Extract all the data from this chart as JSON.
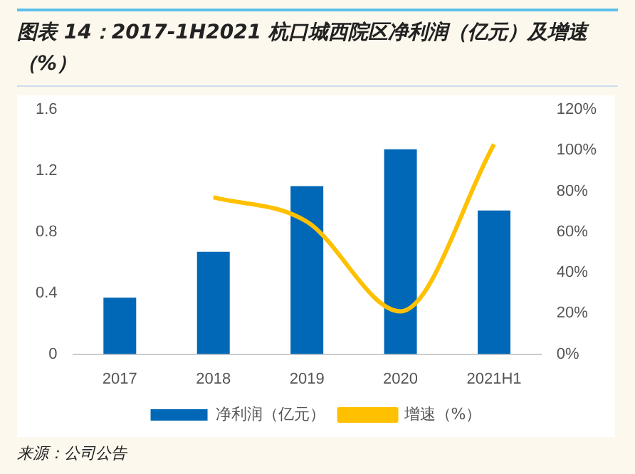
{
  "chart_data": {
    "type": "bar",
    "title": "图表 14：2017-1H2021 杭口城西院区净利润（亿元）及增速（%）",
    "categories": [
      "2017",
      "2018",
      "2019",
      "2020",
      "2021H1"
    ],
    "series": [
      {
        "name": "净利润（亿元）",
        "color": "#0068b7",
        "values": [
          0.37,
          0.67,
          1.1,
          1.34,
          0.94
        ]
      },
      {
        "name": "增速（%）",
        "type": "line",
        "axis": "y2",
        "color": "#ffc000",
        "values": [
          null,
          77,
          65,
          21,
          103
        ]
      }
    ],
    "ylim": [
      0,
      1.6
    ],
    "yticks": [
      0,
      0.4,
      0.8,
      1.2,
      1.6
    ],
    "y2lim": [
      0,
      120
    ],
    "y2ticks": [
      {
        "value": 0,
        "label": "0%"
      },
      {
        "value": 20,
        "label": "20%"
      },
      {
        "value": 40,
        "label": "40%"
      },
      {
        "value": 60,
        "label": "60%"
      },
      {
        "value": 80,
        "label": "80%"
      },
      {
        "value": 100,
        "label": "100%"
      },
      {
        "value": 120,
        "label": "120%"
      }
    ],
    "legend": "bottom",
    "grid": false,
    "marker": "none",
    "line_style": "solid",
    "annotations": [
      "来源：公司公告"
    ]
  }
}
